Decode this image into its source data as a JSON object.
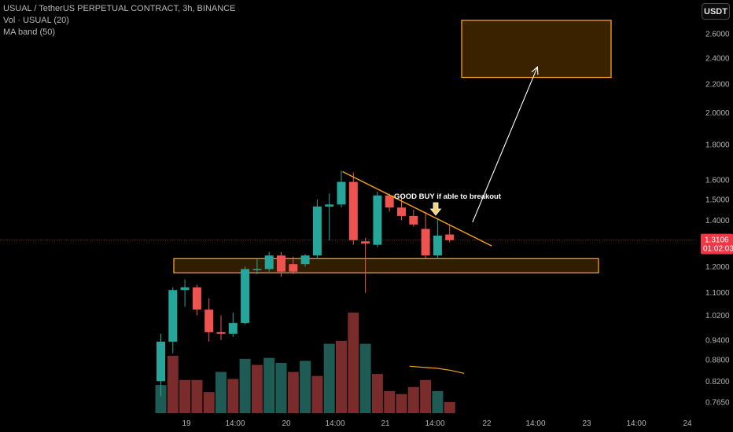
{
  "legend": {
    "symbol": "USUAL / TetherUS PERPETUAL CONTRACT, 3h, BINANCE",
    "volume": "Vol · USUAL (20)",
    "ma_band": "MA band (50)"
  },
  "currency_label": "USDT",
  "colors": {
    "background": "#000000",
    "up": "#26a69a",
    "down": "#ef5350",
    "vol_up": "#1d5b54",
    "vol_down": "#7a2b2b",
    "orange": "#f7a21b",
    "zone_fill": "#3a2200",
    "text": "#b3b3b3",
    "price_tag": "#f23645"
  },
  "chart_data": {
    "type": "candlestick",
    "title": "USUAL / TetherUS PERPETUAL CONTRACT, 3h, BINANCE",
    "y_scale": "log",
    "ylim": [
      0.745,
      2.85
    ],
    "y_ticks": [
      "2.6000",
      "2.4000",
      "2.2000",
      "2.0000",
      "1.8000",
      "1.6000",
      "1.5000",
      "1.4000",
      "1.2000",
      "1.1000",
      "1.0200",
      "0.9400",
      "0.8800",
      "0.8200",
      "0.7650"
    ],
    "x_ticks": [
      "19",
      "14:00",
      "20",
      "14:00",
      "21",
      "14:00",
      "22",
      "14:00",
      "23",
      "14:00",
      "24"
    ],
    "candles": [
      {
        "o": 0.82,
        "h": 0.96,
        "l": 0.78,
        "c": 0.935
      },
      {
        "o": 0.935,
        "h": 1.12,
        "l": 0.9,
        "c": 1.11
      },
      {
        "o": 1.11,
        "h": 1.15,
        "l": 1.05,
        "c": 1.12
      },
      {
        "o": 1.12,
        "h": 1.13,
        "l": 1.02,
        "c": 1.04
      },
      {
        "o": 1.04,
        "h": 1.08,
        "l": 0.935,
        "c": 0.965
      },
      {
        "o": 0.965,
        "h": 1.02,
        "l": 0.94,
        "c": 0.96
      },
      {
        "o": 0.96,
        "h": 1.03,
        "l": 0.95,
        "c": 0.995
      },
      {
        "o": 0.995,
        "h": 1.2,
        "l": 0.99,
        "c": 1.19
      },
      {
        "o": 1.19,
        "h": 1.23,
        "l": 1.17,
        "c": 1.19
      },
      {
        "o": 1.19,
        "h": 1.26,
        "l": 1.18,
        "c": 1.245
      },
      {
        "o": 1.245,
        "h": 1.26,
        "l": 1.16,
        "c": 1.18
      },
      {
        "o": 1.21,
        "h": 1.24,
        "l": 1.17,
        "c": 1.18
      },
      {
        "o": 1.21,
        "h": 1.25,
        "l": 1.2,
        "c": 1.245
      },
      {
        "o": 1.245,
        "h": 1.5,
        "l": 1.23,
        "c": 1.465
      },
      {
        "o": 1.465,
        "h": 1.53,
        "l": 1.31,
        "c": 1.475
      },
      {
        "o": 1.475,
        "h": 1.65,
        "l": 1.46,
        "c": 1.59
      },
      {
        "o": 1.59,
        "h": 1.64,
        "l": 1.29,
        "c": 1.31
      },
      {
        "o": 1.305,
        "h": 1.32,
        "l": 1.1,
        "c": 1.295
      },
      {
        "o": 1.29,
        "h": 1.54,
        "l": 1.28,
        "c": 1.52
      },
      {
        "o": 1.52,
        "h": 1.53,
        "l": 1.44,
        "c": 1.46
      },
      {
        "o": 1.46,
        "h": 1.52,
        "l": 1.4,
        "c": 1.42
      },
      {
        "o": 1.42,
        "h": 1.45,
        "l": 1.37,
        "c": 1.38
      },
      {
        "o": 1.36,
        "h": 1.44,
        "l": 1.23,
        "c": 1.245
      },
      {
        "o": 1.245,
        "h": 1.41,
        "l": 1.23,
        "c": 1.33
      },
      {
        "o": 1.335,
        "h": 1.38,
        "l": 1.3,
        "c": 1.31
      }
    ],
    "volume": [
      {
        "v": 0.28,
        "up": true
      },
      {
        "v": 0.57,
        "up": false
      },
      {
        "v": 0.33,
        "up": false
      },
      {
        "v": 0.33,
        "up": false
      },
      {
        "v": 0.21,
        "up": false
      },
      {
        "v": 0.41,
        "up": true
      },
      {
        "v": 0.34,
        "up": false
      },
      {
        "v": 0.54,
        "up": true
      },
      {
        "v": 0.48,
        "up": false
      },
      {
        "v": 0.55,
        "up": true
      },
      {
        "v": 0.5,
        "up": true
      },
      {
        "v": 0.41,
        "up": false
      },
      {
        "v": 0.52,
        "up": true
      },
      {
        "v": 0.37,
        "up": false
      },
      {
        "v": 0.69,
        "up": true
      },
      {
        "v": 0.72,
        "up": false
      },
      {
        "v": 1.0,
        "up": false
      },
      {
        "v": 0.69,
        "up": true
      },
      {
        "v": 0.39,
        "up": false
      },
      {
        "v": 0.22,
        "up": false
      },
      {
        "v": 0.19,
        "up": false
      },
      {
        "v": 0.26,
        "up": false
      },
      {
        "v": 0.33,
        "up": false
      },
      {
        "v": 0.22,
        "up": true
      },
      {
        "v": 0.11,
        "up": false
      }
    ],
    "volume_ma": [
      0.56,
      0.55,
      0.54,
      0.52,
      0.49
    ],
    "last_price": "1.3106",
    "countdown": "01:02:03",
    "last_price_value": 1.3106,
    "annotations": {
      "breakout_text": "GOOD BUY if able to breakout",
      "support_zone": [
        1.175,
        1.232
      ],
      "target_zone": [
        2.25,
        2.72
      ],
      "trendline_from": {
        "bar": 15.1,
        "price": 1.645
      },
      "trendline_to": {
        "bar": 27.5,
        "price": 1.285
      },
      "projection_from": {
        "bar": 25.9,
        "price": 1.39
      },
      "projection_to": {
        "bar": 31.3,
        "price": 2.33
      }
    }
  }
}
